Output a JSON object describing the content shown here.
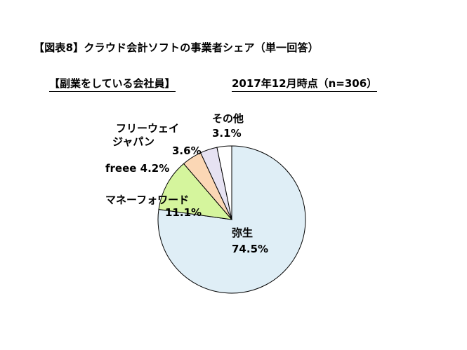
{
  "title": "【図表8】クラウド会計ソフトの事業者シェア（単一回答）",
  "subtitle_left": "【副業をしている会社員】",
  "subtitle_right": "2017年12月時点（n=306）",
  "chart_data": {
    "type": "pie",
    "title": "【図表8】クラウド会計ソフトの事業者シェア（単一回答）",
    "slices": [
      {
        "label": "弥生",
        "value": 74.5,
        "value_label": "74.5%",
        "color": "#dfeef6"
      },
      {
        "label": "マネーフォワード",
        "value": 11.1,
        "value_label": "11.1%",
        "color": "#d5f59d"
      },
      {
        "label": "freee",
        "value": 4.2,
        "value_label": "4.2%",
        "color": "#fbd7b5"
      },
      {
        "label": "フリーウェイジャパン",
        "label_lines": [
          "フリーウェイ",
          "ジャパン"
        ],
        "value": 3.6,
        "value_label": "3.6%",
        "color": "#e6e2f2"
      },
      {
        "label": "その他",
        "value": 3.1,
        "value_label": "3.1%",
        "color": "#ffffff"
      }
    ]
  }
}
